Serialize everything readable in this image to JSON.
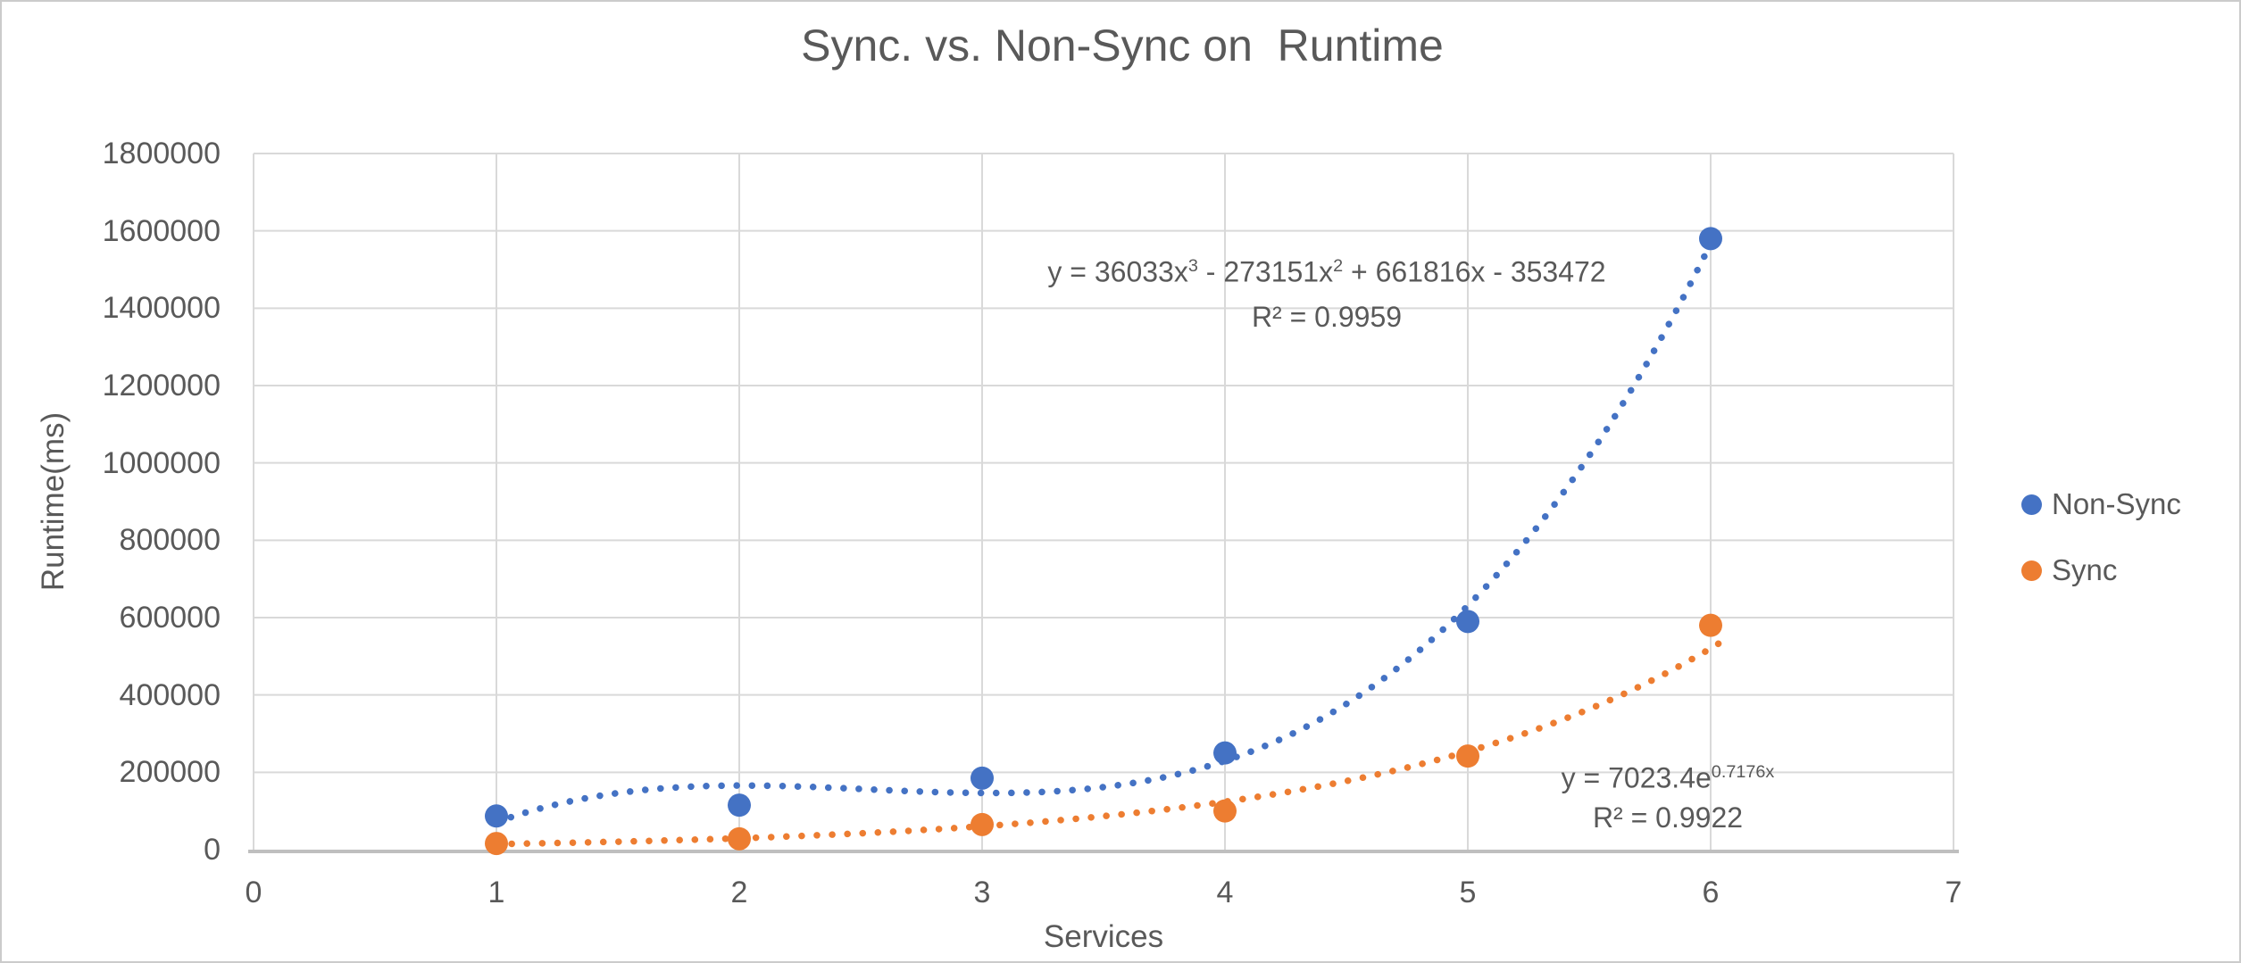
{
  "chart_data": {
    "type": "scatter",
    "title": "Sync. vs. Non-Sync on  Runtime",
    "xlabel": "Services",
    "ylabel": "Runtime(ms)",
    "xlim": [
      0,
      7
    ],
    "ylim": [
      0,
      1800000
    ],
    "grid": true,
    "legend_position": "right",
    "x_ticks": [
      0,
      1,
      2,
      3,
      4,
      5,
      6,
      7
    ],
    "x_tick_labels": [
      "0",
      "1",
      "2",
      "3",
      "4",
      "5",
      "6",
      "7"
    ],
    "y_ticks": [
      0,
      200000,
      400000,
      600000,
      800000,
      1000000,
      1200000,
      1400000,
      1600000,
      1800000
    ],
    "y_tick_labels": [
      "0",
      "200000",
      "400000",
      "600000",
      "800000",
      "1000000",
      "1200000",
      "1400000",
      "1600000",
      "1800000"
    ],
    "series": [
      {
        "name": "Non-Sync",
        "color": "#4472C4",
        "marker": "circle",
        "x": [
          1,
          2,
          3,
          4,
          5,
          6
        ],
        "y": [
          87000,
          115000,
          185000,
          250000,
          590000,
          1580000
        ],
        "trendline": {
          "kind": "cubic",
          "style": "dotted",
          "coeffs": [
            36033,
            -273151,
            661816,
            -353472
          ],
          "range": [
            1,
            6
          ],
          "equation_parts": [
            {
              "t": "y = 36033x"
            },
            {
              "t": "3",
              "sup": true
            },
            {
              "t": " - 273151x"
            },
            {
              "t": "2",
              "sup": true
            },
            {
              "t": " + 661816x - 353472"
            }
          ],
          "r2": "R² = 0.9959"
        }
      },
      {
        "name": "Sync",
        "color": "#ED7D31",
        "marker": "circle",
        "x": [
          1,
          2,
          3,
          4,
          5,
          6
        ],
        "y": [
          16000,
          28000,
          65000,
          100000,
          242000,
          580000
        ],
        "trendline": {
          "kind": "exp",
          "style": "dotted",
          "a": 7023.4,
          "b": 0.7176,
          "range": [
            1,
            6.05
          ],
          "equation_parts": [
            {
              "t": "y = 7023.4e"
            },
            {
              "t": "0.7176x",
              "sup": true
            }
          ],
          "r2": "R² = 0.9922"
        }
      }
    ],
    "colors": {
      "gridline": "#D9D9D9",
      "axis_line": "#BFBFBF",
      "text": "#595959"
    }
  }
}
